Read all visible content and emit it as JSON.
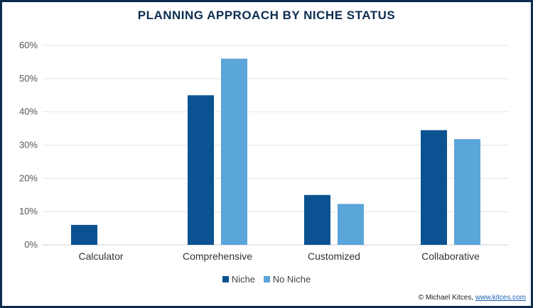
{
  "chart_data": {
    "type": "bar",
    "title": "PLANNING APPROACH BY NICHE STATUS",
    "categories": [
      "Calculator",
      "Comprehensive",
      "Customized",
      "Collaborative"
    ],
    "series": [
      {
        "name": "Niche",
        "color": "#0a5291",
        "values": [
          6,
          45,
          15,
          34.5
        ]
      },
      {
        "name": "No Niche",
        "color": "#5aa5d9",
        "values": [
          0,
          56,
          12.3,
          31.8
        ]
      }
    ],
    "ylim": [
      0,
      60
    ],
    "yticks": [
      "0%",
      "10%",
      "20%",
      "30%",
      "40%",
      "50%",
      "60%"
    ],
    "ytick_values": [
      0,
      10,
      20,
      30,
      40,
      50,
      60
    ],
    "grid": true,
    "legend": "bottom-center"
  },
  "footer": {
    "credit_text": "© Michael Kitces, ",
    "credit_link": "www.kitces.com"
  }
}
